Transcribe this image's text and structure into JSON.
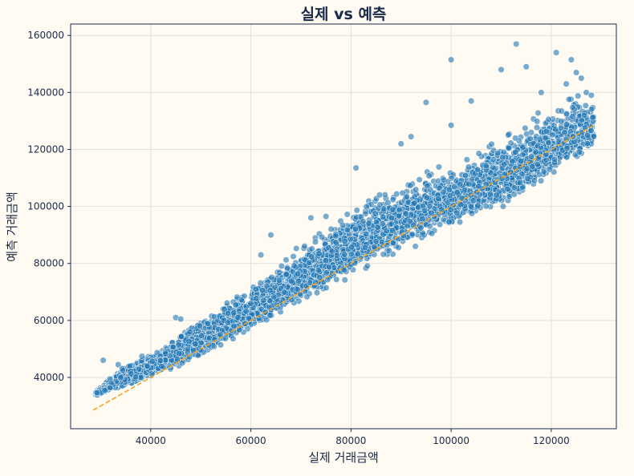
{
  "chart_data": {
    "type": "scatter",
    "title": "실제 vs 예측",
    "xlabel": "실제 거래금액",
    "ylabel": "예측 거래금액",
    "xlim": [
      24000,
      133000
    ],
    "ylim": [
      22000,
      164000
    ],
    "x_ticks": [
      40000,
      60000,
      80000,
      100000,
      120000
    ],
    "y_ticks": [
      40000,
      60000,
      80000,
      100000,
      120000,
      140000,
      160000
    ],
    "grid": true,
    "colors": {
      "point": "#1f77b4",
      "reference_line": "#f5a623",
      "background": "#fffbf3"
    },
    "reference_line": {
      "style": "dashed",
      "x": [
        28500,
        128500
      ],
      "y": [
        28500,
        128500
      ]
    },
    "series": [
      {
        "approx_points": 12000,
        "scatter_band": [
          {
            "x": 29000,
            "y_low": 33500,
            "y_high": 35000
          },
          {
            "x": 35000,
            "y_low": 36500,
            "y_high": 45000
          },
          {
            "x": 40000,
            "y_low": 39500,
            "y_high": 49000
          },
          {
            "x": 45000,
            "y_low": 42500,
            "y_high": 55000
          },
          {
            "x": 50000,
            "y_low": 46500,
            "y_high": 62000
          },
          {
            "x": 55000,
            "y_low": 51000,
            "y_high": 67000
          },
          {
            "x": 60000,
            "y_low": 55500,
            "y_high": 74000
          },
          {
            "x": 65000,
            "y_low": 60500,
            "y_high": 80000
          },
          {
            "x": 70000,
            "y_low": 65500,
            "y_high": 87000
          },
          {
            "x": 75000,
            "y_low": 70000,
            "y_high": 94000
          },
          {
            "x": 80000,
            "y_low": 74500,
            "y_high": 101000
          },
          {
            "x": 85000,
            "y_low": 78500,
            "y_high": 107000
          },
          {
            "x": 90000,
            "y_low": 83000,
            "y_high": 112000
          },
          {
            "x": 95000,
            "y_low": 87000,
            "y_high": 114000
          },
          {
            "x": 100000,
            "y_low": 91000,
            "y_high": 117000
          },
          {
            "x": 105000,
            "y_low": 95000,
            "y_high": 122000
          },
          {
            "x": 110000,
            "y_low": 98000,
            "y_high": 127000
          },
          {
            "x": 115000,
            "y_low": 103000,
            "y_high": 132000
          },
          {
            "x": 120000,
            "y_low": 108000,
            "y_high": 138000
          },
          {
            "x": 125000,
            "y_low": 114000,
            "y_high": 142000
          },
          {
            "x": 128500,
            "y_low": 119000,
            "y_high": 139000
          }
        ],
        "outliers": [
          [
            30500,
            46000
          ],
          [
            33500,
            44500
          ],
          [
            45000,
            61000
          ],
          [
            46000,
            60500
          ],
          [
            62000,
            83000
          ],
          [
            64000,
            90000
          ],
          [
            72000,
            96000
          ],
          [
            75000,
            96500
          ],
          [
            81000,
            113500
          ],
          [
            90000,
            122000
          ],
          [
            92000,
            124500
          ],
          [
            95000,
            136500
          ],
          [
            100000,
            151500
          ],
          [
            100000,
            128500
          ],
          [
            104000,
            137000
          ],
          [
            110000,
            148000
          ],
          [
            113000,
            157000
          ],
          [
            115000,
            149000
          ],
          [
            118000,
            140000
          ],
          [
            121000,
            154000
          ],
          [
            123000,
            143000
          ],
          [
            124000,
            151500
          ],
          [
            125000,
            147000
          ],
          [
            126000,
            145000
          ],
          [
            127000,
            140000
          ],
          [
            128500,
            124500
          ],
          [
            128000,
            139000
          ]
        ]
      }
    ]
  }
}
